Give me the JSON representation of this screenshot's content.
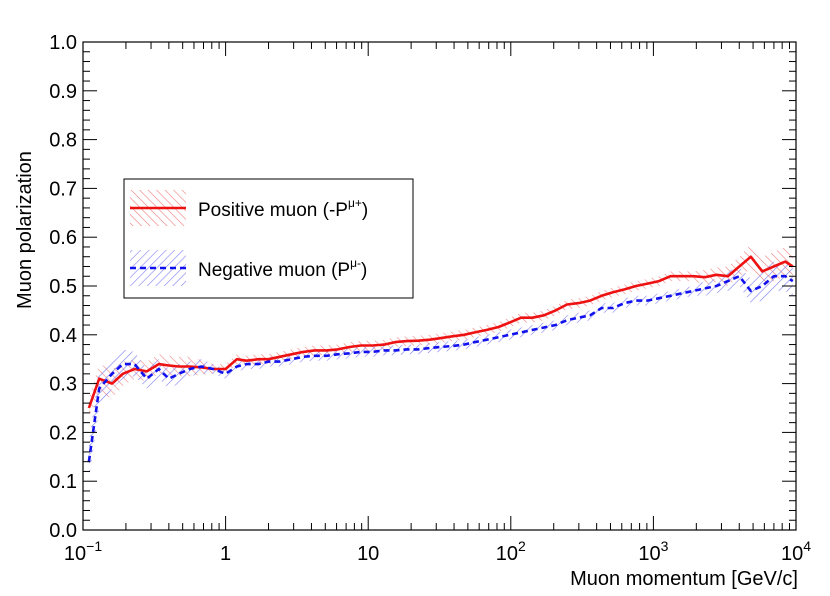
{
  "chart_data": {
    "type": "line",
    "title": "",
    "xlabel": "Muon momentum [GeV/c]",
    "ylabel": "Muon polarization",
    "xscale": "log",
    "xlim": [
      0.1,
      10000
    ],
    "ylim": [
      0.0,
      1.0
    ],
    "grid": false,
    "legend_position": "left",
    "x_ticks": [
      {
        "value": 0.1,
        "base": "10",
        "exp": "−1"
      },
      {
        "value": 1,
        "base": "1",
        "exp": ""
      },
      {
        "value": 10,
        "base": "10",
        "exp": ""
      },
      {
        "value": 100,
        "base": "10",
        "exp": "2"
      },
      {
        "value": 1000,
        "base": "10",
        "exp": "3"
      },
      {
        "value": 10000,
        "base": "10",
        "exp": "4"
      }
    ],
    "y_ticks": [
      "0.0",
      "0.1",
      "0.2",
      "0.3",
      "0.4",
      "0.5",
      "0.6",
      "0.7",
      "0.8",
      "0.9",
      "1.0"
    ],
    "series": [
      {
        "name": "Positive muon",
        "legend_label": "Positive muon (-P",
        "legend_sup": "μ+",
        "legend_suffix": ")",
        "color": "#ee1111",
        "dash": "solid",
        "band_color": "#f08080",
        "x": [
          0.11,
          0.13,
          0.16,
          0.19,
          0.23,
          0.28,
          0.34,
          0.4,
          0.47,
          0.56,
          0.68,
          0.82,
          1.0,
          1.2,
          1.4,
          1.7,
          2.0,
          2.4,
          2.9,
          3.5,
          4.2,
          5.1,
          6.1,
          7.4,
          8.9,
          10.7,
          12.9,
          15.5,
          18.6,
          22.4,
          27,
          32,
          39,
          47,
          56,
          68,
          82,
          98,
          118,
          142,
          171,
          206,
          248,
          299,
          360,
          433,
          521,
          627,
          755,
          909,
          1094,
          1317,
          1585,
          1908,
          2297,
          2765,
          3328,
          4006,
          4822,
          5804,
          6987,
          8409,
          9500
        ],
        "y": [
          0.25,
          0.31,
          0.3,
          0.32,
          0.33,
          0.325,
          0.34,
          0.337,
          0.335,
          0.335,
          0.333,
          0.33,
          0.33,
          0.35,
          0.347,
          0.35,
          0.35,
          0.355,
          0.36,
          0.365,
          0.368,
          0.368,
          0.37,
          0.375,
          0.378,
          0.378,
          0.38,
          0.385,
          0.387,
          0.388,
          0.39,
          0.393,
          0.397,
          0.4,
          0.405,
          0.41,
          0.416,
          0.425,
          0.435,
          0.435,
          0.44,
          0.45,
          0.462,
          0.465,
          0.47,
          0.48,
          0.487,
          0.493,
          0.5,
          0.505,
          0.51,
          0.52,
          0.52,
          0.52,
          0.518,
          0.523,
          0.52,
          0.54,
          0.56,
          0.53,
          0.54,
          0.55,
          0.54
        ],
        "band": [
          0.02,
          0.03,
          0.03,
          0.025,
          0.02,
          0.02,
          0.02,
          0.02,
          0.02,
          0.02,
          0.015,
          0.01,
          0.01,
          0.01,
          0.01,
          0.01,
          0.01,
          0.01,
          0.01,
          0.01,
          0.01,
          0.01,
          0.01,
          0.01,
          0.01,
          0.01,
          0.01,
          0.01,
          0.01,
          0.01,
          0.01,
          0.01,
          0.01,
          0.01,
          0.01,
          0.01,
          0.01,
          0.01,
          0.01,
          0.01,
          0.01,
          0.01,
          0.01,
          0.01,
          0.01,
          0.01,
          0.01,
          0.01,
          0.01,
          0.01,
          0.01,
          0.01,
          0.01,
          0.01,
          0.015,
          0.015,
          0.02,
          0.02,
          0.025,
          0.03,
          0.03,
          0.03,
          0.03
        ]
      },
      {
        "name": "Negative muon",
        "legend_label": "Negative muon (P",
        "legend_sup": "μ-",
        "legend_suffix": ")",
        "color": "#1111ee",
        "dash": "dashed",
        "band_color": "#8080f0",
        "x": [
          0.11,
          0.13,
          0.16,
          0.19,
          0.23,
          0.28,
          0.34,
          0.4,
          0.47,
          0.56,
          0.68,
          0.82,
          1.0,
          1.2,
          1.4,
          1.7,
          2.0,
          2.4,
          2.9,
          3.5,
          4.2,
          5.1,
          6.1,
          7.4,
          8.9,
          10.7,
          12.9,
          15.5,
          18.6,
          22.4,
          27,
          32,
          39,
          47,
          56,
          68,
          82,
          98,
          118,
          142,
          171,
          206,
          248,
          299,
          360,
          433,
          521,
          627,
          755,
          909,
          1094,
          1317,
          1585,
          1908,
          2297,
          2765,
          3328,
          4006,
          4822,
          5804,
          6987,
          8409,
          9500
        ],
        "y": [
          0.14,
          0.29,
          0.32,
          0.34,
          0.34,
          0.31,
          0.33,
          0.31,
          0.32,
          0.33,
          0.335,
          0.33,
          0.32,
          0.335,
          0.34,
          0.34,
          0.345,
          0.345,
          0.35,
          0.355,
          0.357,
          0.357,
          0.36,
          0.362,
          0.365,
          0.365,
          0.368,
          0.368,
          0.37,
          0.37,
          0.373,
          0.375,
          0.377,
          0.38,
          0.385,
          0.39,
          0.395,
          0.4,
          0.405,
          0.41,
          0.415,
          0.42,
          0.43,
          0.435,
          0.44,
          0.455,
          0.455,
          0.465,
          0.47,
          0.47,
          0.475,
          0.48,
          0.485,
          0.49,
          0.495,
          0.5,
          0.51,
          0.52,
          0.49,
          0.5,
          0.52,
          0.52,
          0.51
        ],
        "band": [
          0.04,
          0.04,
          0.03,
          0.03,
          0.025,
          0.02,
          0.02,
          0.02,
          0.02,
          0.015,
          0.015,
          0.01,
          0.01,
          0.01,
          0.01,
          0.01,
          0.01,
          0.01,
          0.01,
          0.01,
          0.01,
          0.01,
          0.01,
          0.01,
          0.01,
          0.01,
          0.01,
          0.01,
          0.01,
          0.01,
          0.01,
          0.01,
          0.01,
          0.01,
          0.01,
          0.01,
          0.01,
          0.01,
          0.01,
          0.01,
          0.01,
          0.01,
          0.01,
          0.01,
          0.01,
          0.01,
          0.01,
          0.01,
          0.01,
          0.01,
          0.01,
          0.01,
          0.01,
          0.01,
          0.015,
          0.015,
          0.02,
          0.02,
          0.025,
          0.03,
          0.03,
          0.03,
          0.03
        ]
      }
    ]
  }
}
